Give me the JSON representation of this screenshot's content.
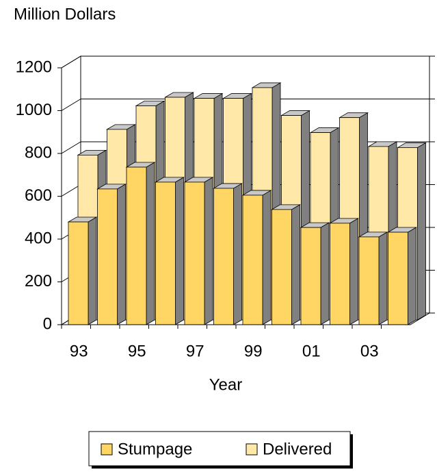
{
  "chart_data": {
    "type": "bar3d",
    "y_axis_label": "Million Dollars",
    "x_axis_label": "Year",
    "categories": [
      "93",
      null,
      "95",
      null,
      "97",
      null,
      "99",
      null,
      "01",
      null,
      "03",
      null
    ],
    "series": [
      {
        "name": "Stumpage",
        "color": "#ffd564",
        "values": [
          480,
          634,
          736,
          666,
          666,
          637,
          605,
          538,
          454,
          474,
          410,
          432
        ]
      },
      {
        "name": "Delivered",
        "color": "#ffe8a8",
        "values": [
          770,
          890,
          1000,
          1040,
          1035,
          1035,
          1085,
          955,
          875,
          945,
          810,
          805
        ]
      }
    ],
    "ylim": [
      0,
      1200
    ],
    "yticks": [
      0,
      200,
      400,
      600,
      800,
      1000,
      1200
    ],
    "grid": true,
    "legend": "bottom"
  }
}
